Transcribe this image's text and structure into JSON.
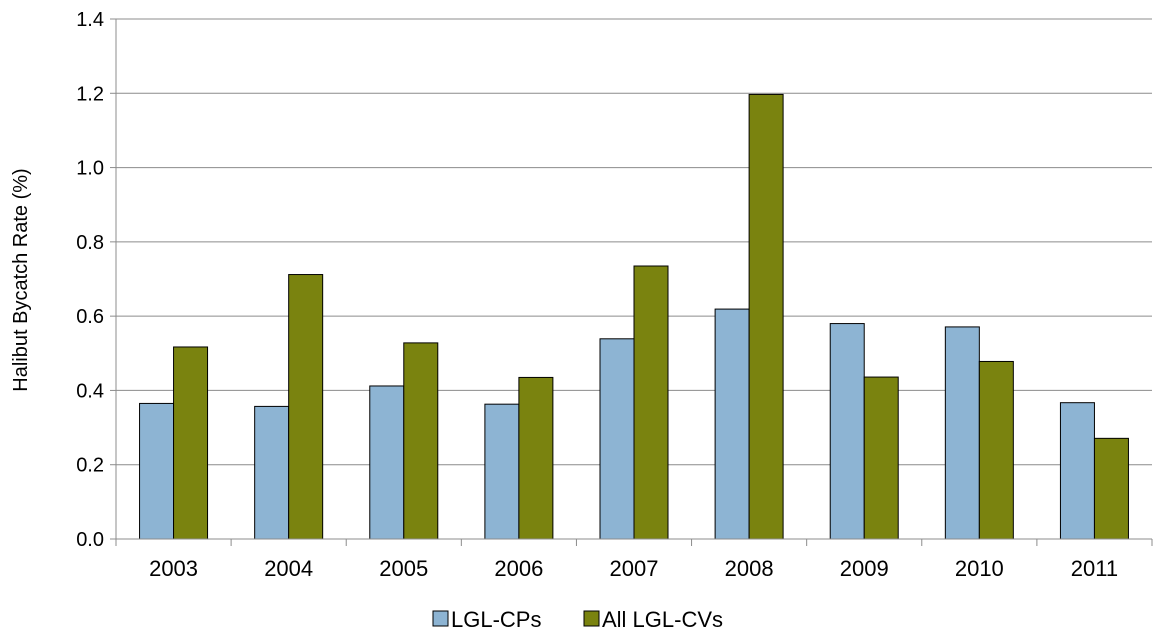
{
  "chart_data": {
    "type": "bar",
    "title": "",
    "xlabel": "",
    "ylabel": "Halibut Bycatch Rate (%)",
    "ylim": [
      0,
      1.4
    ],
    "yticks": [
      "0.0",
      "0.2",
      "0.4",
      "0.6",
      "0.8",
      "1.0",
      "1.2",
      "1.4"
    ],
    "grid": true,
    "legend_position": "bottom",
    "categories": [
      "2003",
      "2004",
      "2005",
      "2006",
      "2007",
      "2008",
      "2009",
      "2010",
      "2011"
    ],
    "series": [
      {
        "name": "LGL-CPs",
        "color": "#8db4d3",
        "values": [
          0.365,
          0.357,
          0.412,
          0.363,
          0.539,
          0.619,
          0.58,
          0.571,
          0.367
        ]
      },
      {
        "name": "All LGL-CVs",
        "color": "#7a830f",
        "values": [
          0.517,
          0.712,
          0.528,
          0.435,
          0.735,
          1.197,
          0.436,
          0.478,
          0.271
        ]
      }
    ]
  }
}
